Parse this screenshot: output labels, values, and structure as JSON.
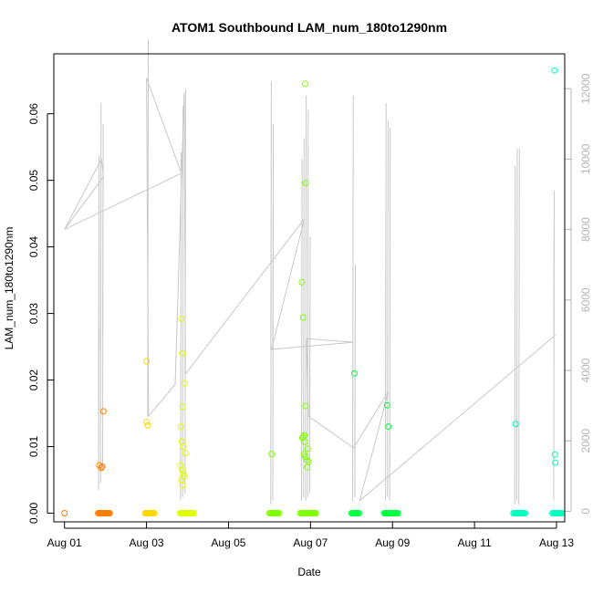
{
  "chart_data": {
    "type": "scatter",
    "title": "ATOM1 Southbound LAM_num_180to1290nm",
    "xlabel": "Date",
    "ylabel": "LAM_num_180to1290nm",
    "x_ticks": [
      "Aug 01",
      "Aug 03",
      "Aug 05",
      "Aug 07",
      "Aug 09",
      "Aug 11",
      "Aug 13"
    ],
    "xlim_days": [
      0.74,
      13.2
    ],
    "ylim": [
      -0.0013,
      0.069
    ],
    "y_ticks": [
      0.0,
      0.01,
      0.02,
      0.03,
      0.04,
      0.05,
      0.06
    ],
    "y_tick_labels": [
      "0.00",
      "0.01",
      "0.02",
      "0.03",
      "0.04",
      "0.05",
      "0.06"
    ],
    "y2lim": [
      -300,
      12990
    ],
    "y2_ticks": [
      0,
      2000,
      4000,
      6000,
      8000,
      10000,
      12000
    ],
    "y2_tick_labels": [
      "0",
      "2000",
      "4000",
      "6000",
      "8000",
      "10000",
      "12000"
    ],
    "grid": false,
    "legend": "none",
    "colors": {
      "line": "#c8c8c8",
      "right_axis": "#b4b4b4",
      "series": [
        "#ff7f00",
        "#ffd700",
        "#dfff00",
        "#7fff00",
        "#00ff40",
        "#00ffbf"
      ]
    },
    "series": [
      {
        "color_index": 0,
        "baseline": [
          1.82,
          1.86,
          1.9,
          1.93,
          1.97
        ],
        "points": [
          [
            1.0,
            0.0
          ],
          [
            1.85,
            0.0072
          ],
          [
            1.9,
            0.0068
          ],
          [
            1.92,
            0.007
          ],
          [
            1.95,
            0.0153
          ]
        ]
      },
      {
        "color_index": 1,
        "baseline": [
          2.97,
          3.0,
          3.03,
          3.06
        ],
        "points": [
          [
            3.0,
            0.0228
          ],
          [
            3.0,
            0.0137
          ],
          [
            3.03,
            0.0132
          ]
        ]
      },
      {
        "color_index": 2,
        "baseline": [
          3.82,
          3.86,
          3.9,
          3.94,
          3.98,
          4.02
        ],
        "points": [
          [
            3.85,
            0.0292
          ],
          [
            3.87,
            0.024
          ],
          [
            3.93,
            0.0195
          ],
          [
            3.88,
            0.016
          ],
          [
            3.84,
            0.013
          ],
          [
            3.86,
            0.0108
          ],
          [
            3.9,
            0.01
          ],
          [
            3.95,
            0.009
          ],
          [
            3.83,
            0.0072
          ],
          [
            3.87,
            0.0065
          ],
          [
            3.9,
            0.006
          ],
          [
            3.92,
            0.0055
          ],
          [
            3.85,
            0.005
          ],
          [
            3.88,
            0.0042
          ]
        ]
      },
      {
        "color_index": 3,
        "baseline": [
          6.0,
          6.05,
          6.1,
          6.75,
          6.8,
          6.85,
          6.9,
          6.95,
          7.0
        ],
        "points": [
          [
            6.05,
            0.0089
          ],
          [
            6.87,
            0.0645
          ],
          [
            6.88,
            0.0496
          ],
          [
            6.79,
            0.0347
          ],
          [
            6.82,
            0.0294
          ],
          [
            6.88,
            0.0161
          ],
          [
            6.82,
            0.0115
          ],
          [
            6.85,
            0.0117
          ],
          [
            6.8,
            0.0113
          ],
          [
            6.86,
            0.0107
          ],
          [
            6.93,
            0.0097
          ],
          [
            6.84,
            0.0089
          ],
          [
            6.87,
            0.0085
          ],
          [
            6.91,
            0.008
          ],
          [
            6.95,
            0.0077
          ],
          [
            6.92,
            0.0069
          ]
        ]
      },
      {
        "color_index": 4,
        "baseline": [
          8.0,
          8.05,
          8.8,
          8.85,
          8.9,
          8.95,
          9.0
        ],
        "points": [
          [
            8.07,
            0.021
          ],
          [
            8.87,
            0.0162
          ],
          [
            8.9,
            0.013
          ]
        ]
      },
      {
        "color_index": 5,
        "baseline": [
          11.95,
          12.0,
          12.05,
          12.1,
          12.9,
          12.95,
          13.0
        ],
        "points": [
          [
            12.0,
            0.0134
          ],
          [
            12.95,
            0.0665
          ],
          [
            12.96,
            0.0088
          ],
          [
            12.97,
            0.0076
          ]
        ]
      }
    ],
    "y2_line": [
      [
        1.0,
        8000
      ],
      [
        1.9,
        10000
      ],
      [
        1.95,
        9500
      ],
      [
        1.0,
        8000
      ],
      [
        3.85,
        9600
      ],
      [
        3.0,
        12300
      ],
      [
        3.05,
        2700
      ],
      [
        3.7,
        3600
      ],
      [
        3.92,
        11900
      ],
      [
        3.95,
        3900
      ],
      [
        6.85,
        8300
      ],
      [
        6.05,
        4600
      ],
      [
        8.05,
        4800
      ],
      [
        6.9,
        4900
      ],
      [
        6.95,
        2700
      ],
      [
        8.05,
        1800
      ],
      [
        8.9,
        3400
      ],
      [
        8.2,
        300
      ],
      [
        12.97,
        5000
      ]
    ],
    "y2_spikes": [
      {
        "x": 1.83,
        "values": [
          600,
          5200,
          900,
          8800,
          1500,
          10100,
          3000
        ]
      },
      {
        "x": 1.88,
        "values": [
          800,
          11600,
          4600,
          10900,
          5300
        ]
      },
      {
        "x": 1.93,
        "values": [
          1200,
          11000,
          5000,
          9600
        ]
      },
      {
        "x": 3.03,
        "values": [
          2700,
          13400,
          2800,
          12300
        ]
      },
      {
        "x": 3.83,
        "values": [
          400,
          9600,
          1200,
          10200,
          300
        ]
      },
      {
        "x": 3.88,
        "values": [
          600,
          11500,
          900,
          11200,
          400
        ]
      },
      {
        "x": 3.94,
        "values": [
          500,
          12000,
          700,
          11600,
          3900
        ]
      },
      {
        "x": 6.03,
        "values": [
          200,
          12200,
          4600,
          12100,
          4700
        ]
      },
      {
        "x": 6.08,
        "values": [
          300,
          11000,
          4800,
          10000
        ]
      },
      {
        "x": 6.78,
        "values": [
          300,
          9800,
          1000,
          10000,
          500
        ]
      },
      {
        "x": 6.83,
        "values": [
          400,
          10600,
          1300,
          10400,
          700
        ]
      },
      {
        "x": 6.88,
        "values": [
          300,
          11800,
          900,
          11300,
          600
        ]
      },
      {
        "x": 6.93,
        "values": [
          400,
          11400,
          1500,
          10400,
          800
        ]
      },
      {
        "x": 6.98,
        "values": [
          500,
          7800,
          2700
        ]
      },
      {
        "x": 8.03,
        "values": [
          300,
          11800,
          1800,
          10700,
          2400
        ]
      },
      {
        "x": 8.08,
        "values": [
          400,
          7000,
          1500
        ]
      },
      {
        "x": 8.83,
        "values": [
          300,
          11200,
          2400,
          11600,
          3200
        ]
      },
      {
        "x": 8.88,
        "values": [
          400,
          11100,
          1800,
          10900,
          2900
        ]
      },
      {
        "x": 8.93,
        "values": [
          300,
          10900,
          900
        ]
      },
      {
        "x": 11.98,
        "values": [
          200,
          9200,
          800,
          9800,
          400
        ]
      },
      {
        "x": 12.03,
        "values": [
          300,
          10000,
          600,
          10300,
          500
        ]
      },
      {
        "x": 12.08,
        "values": [
          200,
          10300,
          400,
          9400
        ]
      },
      {
        "x": 12.93,
        "values": [
          300,
          9000,
          600,
          9100,
          5000
        ]
      }
    ]
  }
}
